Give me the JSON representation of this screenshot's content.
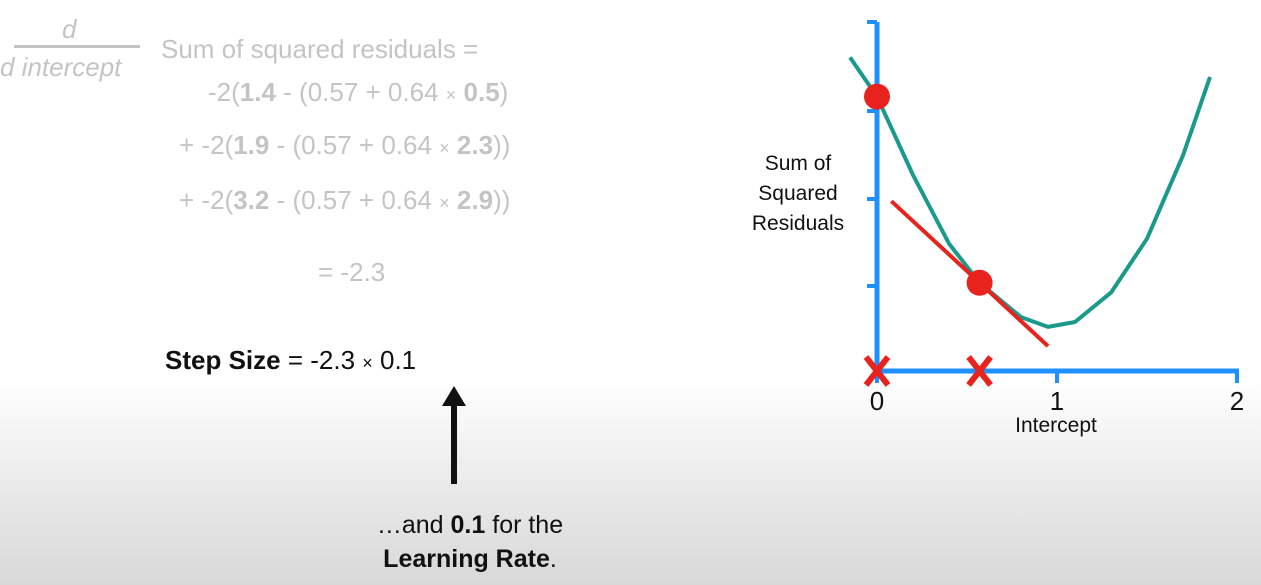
{
  "derivative": {
    "numerator": "d",
    "denominator": "d intercept",
    "title": "Sum of squared residuals ="
  },
  "terms": [
    {
      "prefix": "-2(",
      "obs": "1.4",
      "mid": " - (0.57 + 0.64 ",
      "times": "×",
      "x": "0.5",
      "close": ")"
    },
    {
      "prefix": "+ -2(",
      "obs": "1.9",
      "mid": " - (0.57 + 0.64 ",
      "times": "×",
      "x": "2.3",
      "close": "))"
    },
    {
      "prefix": "+ -2(",
      "obs": "3.2",
      "mid": " - (0.57 + 0.64 ",
      "times": "×",
      "x": "2.9",
      "close": "))"
    }
  ],
  "result": "= -2.3",
  "step_size": {
    "label": "Step Size",
    "eq": " = -2.3 ",
    "times": "×",
    "rate": " 0.1"
  },
  "caption": {
    "pre": "…and ",
    "bold": "0.1",
    "post": " for the",
    "line2_bold": "Learning Rate",
    "line2_post": "."
  },
  "chart_data": {
    "type": "line",
    "xlabel": "Intercept",
    "ylabel": "Sum of Squared Residuals",
    "x_ticks": [
      "0",
      "1",
      "2"
    ],
    "xlim": [
      0,
      2
    ],
    "series": [
      {
        "x": [
          -0.15,
          0,
          0.2,
          0.4,
          0.57,
          0.8,
          0.95,
          1.1,
          1.3,
          1.5,
          1.7,
          1.85
        ],
        "y": [
          3.2,
          2.8,
          2.0,
          1.3,
          0.9,
          0.55,
          0.45,
          0.5,
          0.8,
          1.35,
          2.2,
          3.0
        ]
      }
    ],
    "points": [
      {
        "x": 0,
        "y": 2.8
      },
      {
        "x": 0.57,
        "y": 0.9
      }
    ],
    "x_markers": [
      0,
      0.57
    ],
    "colors": {
      "curve": "#1a9a8a",
      "axis": "#1e90ff",
      "points": "#e8231d",
      "tangent": "#e8231d"
    }
  }
}
